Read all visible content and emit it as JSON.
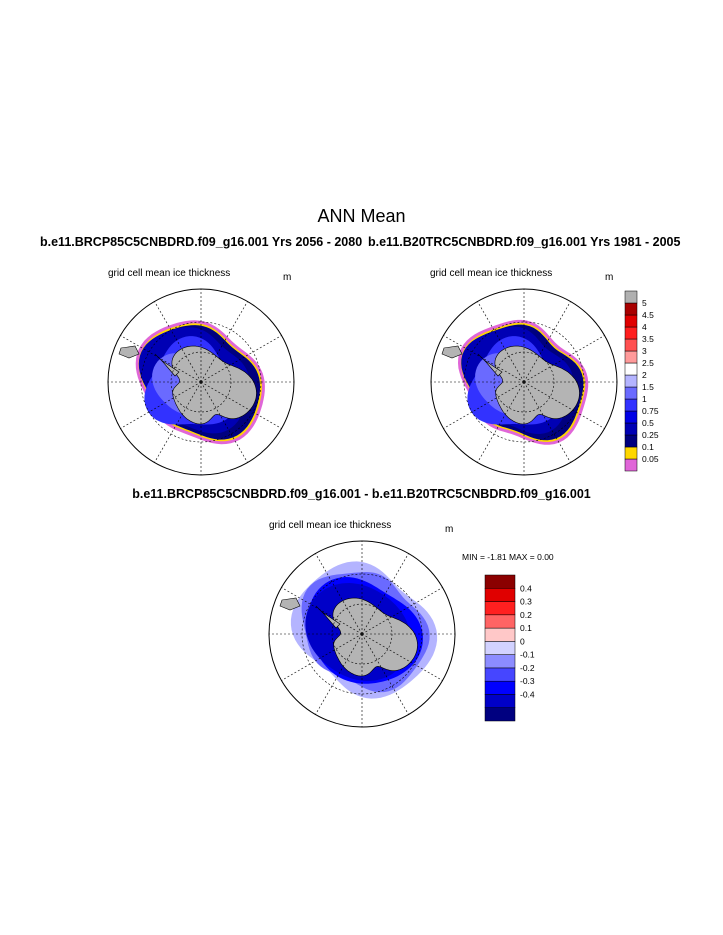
{
  "header": {
    "title": "ANN Mean",
    "left_run": "b.e11.BRCP85C5CNBDRD.f09_g16.001  Yrs 2056 - 2080",
    "right_run": "b.e11.B20TRC5CNBDRD.f09_g16.001  Yrs 1981 - 2005",
    "diff_title": "b.e11.BRCP85C5CNBDRD.f09_g16.001 - b.e11.B20TRC5CNBDRD.f09_g16.001"
  },
  "panels": {
    "left": {
      "subtitle": "grid cell mean ice thickness",
      "units": "m"
    },
    "right": {
      "subtitle": "grid cell mean ice thickness",
      "units": "m"
    },
    "diff": {
      "subtitle": "grid cell mean ice thickness",
      "units": "m",
      "minmax": "MIN =  -1.81 MAX =   0.00"
    }
  },
  "chart_data": [
    {
      "type": "heatmap",
      "title": "b.e11.BRCP85C5CNBDRD.f09_g16.001  Yrs 2056 - 2080",
      "subtitle": "grid cell mean ice thickness",
      "units": "m",
      "projection": "south polar stereographic",
      "colorbar_levels": [
        "0.05",
        "0.1",
        "0.25",
        "0.5",
        "0.75",
        "1",
        "1.5",
        "2",
        "2.5",
        "3",
        "3.5",
        "4",
        "4.5",
        "5"
      ],
      "colorbar_colors": [
        "#e066d8",
        "#ffd700",
        "#00007f",
        "#0000b4",
        "#0000e6",
        "#3232ff",
        "#6a6aff",
        "#b4b4ff",
        "#ffffff",
        "#ff9a9a",
        "#ff5050",
        "#ff1e1e",
        "#e00000",
        "#a80000",
        "#b0b0b0"
      ]
    },
    {
      "type": "heatmap",
      "title": "b.e11.B20TRC5CNBDRD.f09_g16.001  Yrs 1981 - 2005",
      "subtitle": "grid cell mean ice thickness",
      "units": "m",
      "projection": "south polar stereographic",
      "colorbar_levels": [
        "0.05",
        "0.1",
        "0.25",
        "0.5",
        "0.75",
        "1",
        "1.5",
        "2",
        "2.5",
        "3",
        "3.5",
        "4",
        "4.5",
        "5"
      ]
    },
    {
      "type": "heatmap",
      "title": "b.e11.BRCP85C5CNBDRD.f09_g16.001 - b.e11.B20TRC5CNBDRD.f09_g16.001",
      "subtitle": "grid cell mean ice thickness",
      "units": "m",
      "min": -1.81,
      "max": 0.0,
      "colorbar_levels": [
        "-0.4",
        "-0.3",
        "-0.2",
        "-0.1",
        "0",
        "0.1",
        "0.2",
        "0.3",
        "0.4"
      ],
      "colorbar_colors": [
        "#000080",
        "#0000c8",
        "#0000ff",
        "#4646ff",
        "#8c8cff",
        "#d2d2ff",
        "#ffc8c8",
        "#ff6464",
        "#ff2020",
        "#e00000",
        "#8b0000"
      ]
    }
  ]
}
